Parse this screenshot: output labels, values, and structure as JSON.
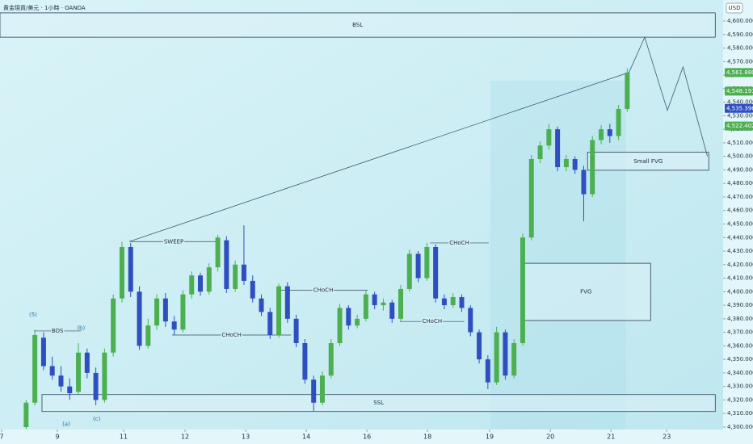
{
  "header": {
    "symbol": "黄金現貨/美元 · 1小時 · OANDA",
    "currency": "USD"
  },
  "chart_data": {
    "type": "candlestick",
    "x": [
      3,
      4,
      5,
      6,
      7,
      8,
      9,
      10,
      11,
      12,
      13,
      14,
      15,
      16,
      17,
      18,
      19,
      20,
      21,
      22,
      23,
      24,
      25,
      26,
      27,
      28,
      29,
      30,
      31,
      32,
      33,
      34,
      35,
      36,
      37,
      38,
      39,
      40,
      41,
      42,
      43,
      44,
      45,
      46,
      47,
      48,
      49,
      50,
      51,
      52,
      53,
      54,
      55,
      56,
      57,
      58,
      59,
      60,
      61,
      62,
      63,
      64,
      65,
      66,
      67,
      68,
      69,
      70,
      71,
      72
    ],
    "open": [
      4300,
      4318,
      4366,
      4345,
      4338,
      4330,
      4326,
      4355,
      4340,
      4320,
      4355,
      4395,
      4433,
      4400,
      4360,
      4375,
      4395,
      4378,
      4372,
      4398,
      4412,
      4400,
      4418,
      4438,
      4402,
      4420,
      4408,
      4395,
      4385,
      4368,
      4404,
      4380,
      4362,
      4335,
      4318,
      4338,
      4362,
      4388,
      4375,
      4380,
      4398,
      4390,
      4392,
      4380,
      4402,
      4428,
      4410,
      4433,
      4395,
      4390,
      4396,
      4388,
      4370,
      4350,
      4333,
      4370,
      4338,
      4362,
      4440,
      4498,
      4508,
      4520,
      4492,
      4498,
      4490,
      4472,
      4512,
      4520,
      4515,
      4535
    ],
    "high": [
      4320,
      4372,
      4370,
      4352,
      4345,
      4336,
      4362,
      4358,
      4344,
      4358,
      4398,
      4437,
      4436,
      4404,
      4380,
      4398,
      4399,
      4382,
      4401,
      4415,
      4414,
      4421,
      4442,
      4441,
      4423,
      4449,
      4412,
      4398,
      4388,
      4406,
      4407,
      4383,
      4365,
      4338,
      4341,
      4365,
      4391,
      4390,
      4383,
      4401,
      4400,
      4395,
      4394,
      4405,
      4431,
      4430,
      4436,
      4435,
      4398,
      4399,
      4398,
      4390,
      4372,
      4353,
      4374,
      4372,
      4365,
      4443,
      4501,
      4511,
      4524,
      4522,
      4501,
      4500,
      4493,
      4515,
      4523,
      4524,
      4538,
      4565
    ],
    "low": [
      4298.5,
      4316,
      4342,
      4335,
      4326,
      4320,
      4324,
      4336,
      4316,
      4318,
      4352,
      4392,
      4396,
      4357,
      4358,
      4372,
      4374,
      4368,
      4370,
      4395,
      4397,
      4398,
      4415,
      4399,
      4400,
      4405,
      4392,
      4382,
      4365,
      4366,
      4377,
      4359,
      4332,
      4312,
      4316,
      4336,
      4360,
      4372,
      4373,
      4378,
      4387,
      4386,
      4377,
      4378,
      4400,
      4407,
      4408,
      4392,
      4387,
      4388,
      4385,
      4367,
      4347,
      4328,
      4331,
      4335,
      4336,
      4360,
      4438,
      4495,
      4505,
      4489,
      4489,
      4487,
      4452,
      4470,
      4509,
      4510,
      4512,
      4533
    ],
    "close": [
      4318,
      4368,
      4345,
      4338,
      4330,
      4325,
      4355,
      4340,
      4320,
      4355,
      4395,
      4433,
      4400,
      4360,
      4375,
      4395,
      4378,
      4372,
      4398,
      4412,
      4400,
      4418,
      4440,
      4402,
      4420,
      4408,
      4395,
      4385,
      4368,
      4404,
      4380,
      4362,
      4335,
      4318,
      4338,
      4362,
      4388,
      4375,
      4380,
      4398,
      4390,
      4392,
      4380,
      4402,
      4428,
      4410,
      4433,
      4395,
      4390,
      4396,
      4388,
      4370,
      4350,
      4333,
      4370,
      4338,
      4362,
      4440,
      4498,
      4508,
      4520,
      4492,
      4498,
      4490,
      4472,
      4512,
      4520,
      4515,
      4535,
      4561.88
    ],
    "up_color": "#4caf50",
    "down_color": "#2f4fc0",
    "xlim": [
      0,
      83
    ],
    "ylim": [
      4298.2,
      4615.5
    ],
    "xticks": [
      {
        "value": 0.19,
        "label": "7"
      },
      {
        "value": 6.59,
        "label": "9"
      },
      {
        "value": 14.19,
        "label": "11"
      },
      {
        "value": 21.24,
        "label": "12"
      },
      {
        "value": 28.2,
        "label": "13"
      },
      {
        "value": 35.16,
        "label": "14"
      },
      {
        "value": 42.12,
        "label": "16"
      },
      {
        "value": 49.07,
        "label": "18"
      },
      {
        "value": 56.2,
        "label": "19"
      },
      {
        "value": 63.17,
        "label": "20"
      },
      {
        "value": 70.13,
        "label": "21"
      },
      {
        "value": 76.53,
        "label": "23"
      }
    ],
    "yticks": [
      {
        "value": 4300,
        "label": "4,300.000"
      },
      {
        "value": 4310,
        "label": "4,310.000"
      },
      {
        "value": 4320,
        "label": "4,320.000"
      },
      {
        "value": 4330,
        "label": "4,330.000"
      },
      {
        "value": 4340,
        "label": "4,340.000"
      },
      {
        "value": 4350,
        "label": "4,350.000"
      },
      {
        "value": 4360,
        "label": "4,360.000"
      },
      {
        "value": 4370,
        "label": "4,370.000"
      },
      {
        "value": 4380,
        "label": "4,380.000"
      },
      {
        "value": 4390,
        "label": "4,390.000"
      },
      {
        "value": 4400,
        "label": "4,400.000"
      },
      {
        "value": 4410,
        "label": "4,410.000"
      },
      {
        "value": 4420,
        "label": "4,420.000"
      },
      {
        "value": 4430,
        "label": "4,430.000"
      },
      {
        "value": 4440,
        "label": "4,440.000"
      },
      {
        "value": 4450,
        "label": "4,450.000"
      },
      {
        "value": 4460,
        "label": "4,460.000"
      },
      {
        "value": 4470,
        "label": "4,470.000"
      },
      {
        "value": 4480,
        "label": "4,480.000"
      },
      {
        "value": 4490,
        "label": "4,490.000"
      },
      {
        "value": 4500,
        "label": "4,500.000"
      },
      {
        "value": 4510,
        "label": "4,510.000"
      },
      {
        "value": 4520,
        "label": "4,520.000"
      },
      {
        "value": 4530,
        "label": "4,530.000"
      },
      {
        "value": 4540,
        "label": "4,540.000"
      },
      {
        "value": 4550,
        "label": "4,550.000"
      },
      {
        "value": 4560,
        "label": "4,560.000"
      },
      {
        "value": 4570,
        "label": "4,570.000"
      },
      {
        "value": 4580,
        "label": "4,580.000"
      },
      {
        "value": 4590,
        "label": "4,590.000"
      },
      {
        "value": 4600,
        "label": "4,600.000"
      }
    ],
    "zones": [
      {
        "label": "BSL",
        "x": [
          0,
          82.1
        ],
        "y": [
          4588,
          4606
        ]
      },
      {
        "label": "SSL",
        "x": [
          4.82,
          82.1
        ],
        "y": [
          4311.5,
          4324
        ]
      },
      {
        "label": "FVG",
        "x": [
          59.83,
          74.68
        ],
        "y": [
          4378.7,
          4421
        ]
      },
      {
        "label": "Small FVG",
        "x": [
          67.44,
          81.35
        ],
        "y": [
          4489.7,
          4503
        ]
      }
    ],
    "levels": [
      {
        "label": "BOS",
        "x": [
          3.9,
          9.3
        ],
        "y": 4371
      },
      {
        "label": "SWEEP",
        "x": [
          14.84,
          25.05
        ],
        "y": 4437
      },
      {
        "label": "CHoCH",
        "x": [
          19.76,
          33.4
        ],
        "y": 4368
      },
      {
        "label": "CHoCH",
        "x": [
          32,
          42.2
        ],
        "y": 4401
      },
      {
        "label": "CHoCH",
        "x": [
          45.9,
          53.3
        ],
        "y": 4378
      },
      {
        "label": "CHoCH",
        "x": [
          49.35,
          56.1
        ],
        "y": 4436
      }
    ],
    "trendline": {
      "x": [
        14.84,
        72.2
      ],
      "y": [
        4437,
        4562
      ]
    },
    "projection": {
      "x": [
        72.2,
        74,
        76.6,
        78.4,
        81.2
      ],
      "y": [
        4562,
        4588,
        4534,
        4566,
        4500
      ]
    },
    "wave_labels": [
      {
        "label": "(5)",
        "x": 3.8,
        "y": 4383
      },
      {
        "label": "(b)",
        "x": 9.3,
        "y": 4373
      },
      {
        "label": "(a)",
        "x": 7.6,
        "y": 4302
      },
      {
        "label": "(c)",
        "x": 11.1,
        "y": 4306
      }
    ],
    "price_tags": [
      {
        "value": 4561.88,
        "label": "4,561.880",
        "color": "#4caf50"
      },
      {
        "value": 4548.191,
        "label": "4,548.191",
        "color": "#4caf50"
      },
      {
        "value": 4535.396,
        "label": "4,535.396",
        "color": "#2f4fc0"
      },
      {
        "value": 4522.402,
        "label": "4,522.402",
        "color": "#4caf50"
      }
    ]
  }
}
